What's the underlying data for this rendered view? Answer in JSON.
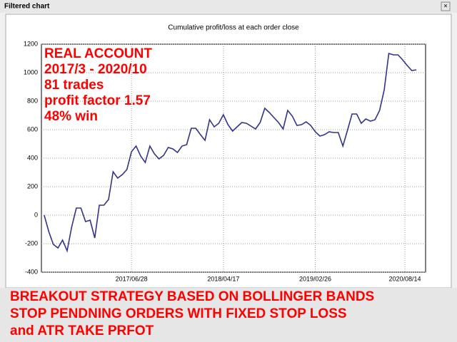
{
  "window": {
    "title": "Filtered chart"
  },
  "chart_data": {
    "type": "line",
    "title": "Cumulative profit/loss at each order close",
    "annotations": [
      "REAL ACCOUNT",
      "2017/3 - 2020/10",
      "81 trades",
      "profit factor 1.57",
      "48% win"
    ],
    "values": [
      0,
      -115,
      -205,
      -230,
      -175,
      -250,
      -80,
      50,
      50,
      -45,
      -35,
      -160,
      70,
      70,
      110,
      305,
      260,
      285,
      320,
      445,
      485,
      415,
      370,
      485,
      430,
      395,
      420,
      475,
      465,
      440,
      485,
      495,
      610,
      610,
      565,
      525,
      670,
      620,
      645,
      705,
      635,
      590,
      620,
      650,
      645,
      625,
      605,
      650,
      750,
      720,
      685,
      650,
      605,
      735,
      695,
      630,
      635,
      655,
      630,
      585,
      555,
      565,
      585,
      580,
      580,
      485,
      595,
      710,
      710,
      645,
      675,
      660,
      670,
      735,
      880,
      1135,
      1125,
      1125,
      1090,
      1050,
      1015,
      1020
    ],
    "color": "#33338a",
    "xlim": [
      -0.6,
      83
    ],
    "xticks": [
      {
        "value": 19,
        "label": "2017/06/28"
      },
      {
        "value": 39,
        "label": "2018/04/17"
      },
      {
        "value": 59,
        "label": "2019/02/26"
      },
      {
        "value": 78.5,
        "label": "2020/08/14"
      }
    ],
    "ylim": [
      -400,
      1200
    ],
    "yticks": [
      -400,
      -200,
      0,
      200,
      400,
      600,
      800,
      1000,
      1200
    ],
    "grid": true
  },
  "footer": [
    "BREAKOUT STRATEGY BASED ON BOLLINGER BANDS",
    "STOP PENDNING ORDERS WITH FIXED STOP LOSS",
    "and ATR TAKE PRFOT"
  ]
}
